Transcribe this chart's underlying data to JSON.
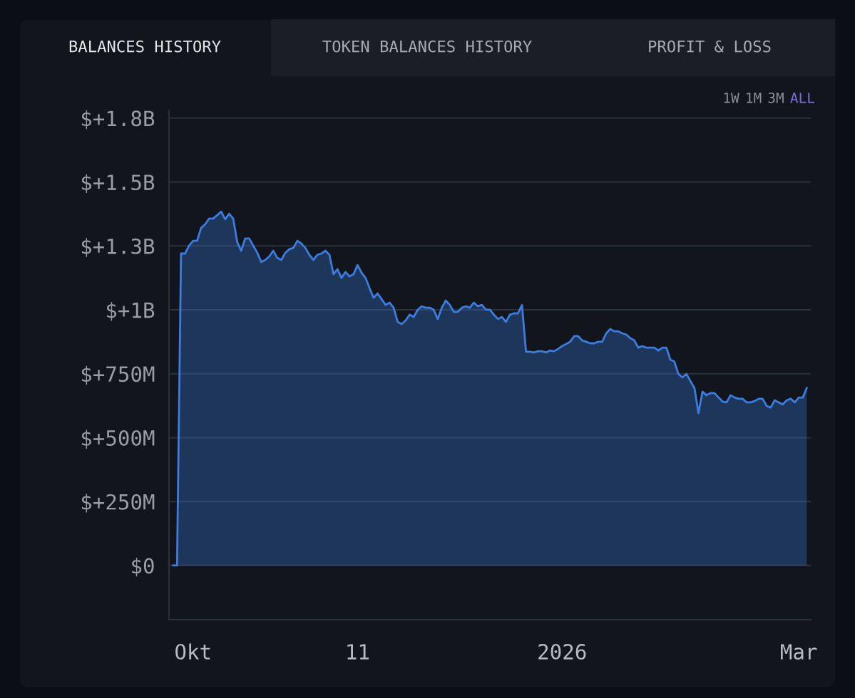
{
  "chart_data": {
    "type": "area",
    "annotations": [
      "BALANCES HISTORY",
      "TOKEN BALANCES HISTORY",
      "PROFIT & LOSS",
      "1W",
      "1M",
      "3M",
      "ALL"
    ],
    "x": [
      "2025-09-26",
      "2025-09-27",
      "2025-09-28",
      "2025-09-29",
      "2025-09-30",
      "2025-10-01",
      "2025-10-02",
      "2025-10-03",
      "2025-10-04",
      "2025-10-05",
      "2025-10-06",
      "2025-10-07",
      "2025-10-08",
      "2025-10-09",
      "2025-10-10",
      "2025-10-11",
      "2025-10-12",
      "2025-10-13",
      "2025-10-14",
      "2025-10-15",
      "2025-10-16",
      "2025-10-17",
      "2025-10-18",
      "2025-10-19",
      "2025-10-20",
      "2025-10-21",
      "2025-10-22",
      "2025-10-23",
      "2025-10-24",
      "2025-10-25",
      "2025-10-26",
      "2025-10-27",
      "2025-10-28",
      "2025-10-29",
      "2025-10-30",
      "2025-10-31",
      "2025-11-01",
      "2025-11-02",
      "2025-11-03",
      "2025-11-04",
      "2025-11-05",
      "2025-11-06",
      "2025-11-07",
      "2025-11-08",
      "2025-11-09",
      "2025-11-10",
      "2025-11-11",
      "2025-11-12",
      "2025-11-13",
      "2025-11-14",
      "2025-11-15",
      "2025-11-16",
      "2025-11-17",
      "2025-11-18",
      "2025-11-19",
      "2025-11-20",
      "2025-11-21",
      "2025-11-22",
      "2025-11-23",
      "2025-11-24",
      "2025-11-25",
      "2025-11-26",
      "2025-11-27",
      "2025-11-28",
      "2025-11-29",
      "2025-11-30",
      "2025-12-01",
      "2025-12-02",
      "2025-12-03",
      "2025-12-04",
      "2025-12-05",
      "2025-12-06",
      "2025-12-07",
      "2025-12-08",
      "2025-12-09",
      "2025-12-10",
      "2025-12-11",
      "2025-12-12",
      "2025-12-13",
      "2025-12-14",
      "2025-12-15",
      "2025-12-16",
      "2025-12-17",
      "2025-12-18",
      "2025-12-19",
      "2025-12-20",
      "2025-12-21",
      "2025-12-22",
      "2025-12-23",
      "2025-12-24",
      "2025-12-25",
      "2025-12-26",
      "2025-12-27",
      "2025-12-28",
      "2025-12-29",
      "2025-12-30",
      "2025-12-31",
      "2026-01-01",
      "2026-01-02",
      "2026-01-03",
      "2026-01-04",
      "2026-01-05",
      "2026-01-06",
      "2026-01-07",
      "2026-01-08",
      "2026-01-09",
      "2026-01-10",
      "2026-01-11",
      "2026-01-12",
      "2026-01-13",
      "2026-01-14",
      "2026-01-15",
      "2026-01-16",
      "2026-01-17",
      "2026-01-18",
      "2026-01-19",
      "2026-01-20",
      "2026-01-21",
      "2026-01-22",
      "2026-01-23",
      "2026-01-24",
      "2026-01-25",
      "2026-01-26",
      "2026-01-27",
      "2026-01-28",
      "2026-01-29",
      "2026-01-30",
      "2026-01-31",
      "2026-02-01",
      "2026-02-02",
      "2026-02-03",
      "2026-02-04",
      "2026-02-05",
      "2026-02-06",
      "2026-02-07",
      "2026-02-08",
      "2026-02-09",
      "2026-02-10",
      "2026-02-11",
      "2026-02-12",
      "2026-02-13",
      "2026-02-14",
      "2026-02-15",
      "2026-02-16",
      "2026-02-17",
      "2026-02-18",
      "2026-02-19",
      "2026-02-20",
      "2026-02-21",
      "2026-02-22",
      "2026-02-23",
      "2026-02-24",
      "2026-02-25",
      "2026-02-26",
      "2026-02-27",
      "2026-02-28",
      "2026-03-01",
      "2026-03-02",
      "2026-03-03"
    ],
    "series": [
      {
        "color": "#3b7de0",
        "values": [
          0,
          0,
          1220000000.0,
          1220000000.0,
          1251000000.0,
          1270000000.0,
          1270000000.0,
          1320000000.0,
          1334000000.0,
          1357000000.0,
          1357000000.0,
          1370000000.0,
          1384000000.0,
          1354000000.0,
          1376000000.0,
          1357000000.0,
          1265000000.0,
          1231000000.0,
          1279000000.0,
          1279000000.0,
          1251000000.0,
          1223000000.0,
          1187000000.0,
          1195000000.0,
          1209000000.0,
          1231000000.0,
          1203000000.0,
          1195000000.0,
          1223000000.0,
          1237000000.0,
          1242000000.0,
          1270000000.0,
          1259000000.0,
          1242000000.0,
          1215000000.0,
          1195000000.0,
          1215000000.0,
          1220000000.0,
          1231000000.0,
          1215000000.0,
          1139000000.0,
          1159000000.0,
          1125000000.0,
          1148000000.0,
          1131000000.0,
          1139000000.0,
          1175000000.0,
          1145000000.0,
          1125000000.0,
          1084000000.0,
          1047000000.0,
          1064000000.0,
          1042000000.0,
          1019000000.0,
          1028000000.0,
          1008000000.0,
          953000000.0,
          944000000.0,
          958000000.0,
          981000000.0,
          972000000.0,
          1000000000.0,
          1014000000.0,
          1008000000.0,
          1008000000.0,
          1000000000.0,
          964000000.0,
          1008000000.0,
          1036000000.0,
          1019000000.0,
          992000000.0,
          992000000.0,
          1008000000.0,
          1014000000.0,
          1008000000.0,
          1028000000.0,
          1014000000.0,
          1019000000.0,
          1000000000.0,
          1000000000.0,
          981000000.0,
          964000000.0,
          972000000.0,
          953000000.0,
          981000000.0,
          986000000.0,
          986000000.0,
          1019000000.0,
          836000000.0,
          836000000.0,
          833000000.0,
          838000000.0,
          838000000.0,
          833000000.0,
          841000000.0,
          838000000.0,
          847000000.0,
          858000000.0,
          866000000.0,
          875000000.0,
          897000000.0,
          897000000.0,
          880000000.0,
          875000000.0,
          869000000.0,
          869000000.0,
          875000000.0,
          875000000.0,
          908000000.0,
          925000000.0,
          916000000.0,
          916000000.0,
          908000000.0,
          903000000.0,
          889000000.0,
          880000000.0,
          852000000.0,
          858000000.0,
          852000000.0,
          852000000.0,
          852000000.0,
          841000000.0,
          852000000.0,
          852000000.0,
          805000000.0,
          797000000.0,
          749000000.0,
          735000000.0,
          749000000.0,
          721000000.0,
          694000000.0,
          596000000.0,
          680000000.0,
          666000000.0,
          674000000.0,
          674000000.0,
          657000000.0,
          641000000.0,
          638000000.0,
          666000000.0,
          657000000.0,
          652000000.0,
          652000000.0,
          638000000.0,
          638000000.0,
          643000000.0,
          652000000.0,
          652000000.0,
          624000000.0,
          618000000.0,
          646000000.0,
          638000000.0,
          630000000.0,
          646000000.0,
          652000000.0,
          638000000.0,
          657000000.0,
          657000000.0,
          694000000.0
        ]
      }
    ],
    "xlim": [
      "2025-09-25",
      "2026-03-04"
    ],
    "xticks": [
      {
        "value": "2025-10-01",
        "label": "Okt"
      },
      {
        "value": "2025-11-11",
        "label": "11"
      },
      {
        "value": "2026-01-01",
        "label": "2026"
      },
      {
        "value": "2026-03-01",
        "label": "Mar"
      }
    ],
    "ylim": [
      -212000000.0,
      1780000000.0
    ],
    "yticks": [
      {
        "value": 0,
        "label": "$0"
      },
      {
        "value": 250000000.0,
        "label": "$+250M"
      },
      {
        "value": 500000000.0,
        "label": "$+500M"
      },
      {
        "value": 750000000.0,
        "label": "$+750M"
      },
      {
        "value": 1000000000.0,
        "label": "$+1B"
      },
      {
        "value": 1250000000.0,
        "label": "$+1.3B"
      },
      {
        "value": 1500000000.0,
        "label": "$+1.5B"
      },
      {
        "value": 1750000000.0,
        "label": "$+1.8B"
      }
    ],
    "grid": "y",
    "legend": false,
    "marker": "none",
    "line_style": "solid"
  }
}
